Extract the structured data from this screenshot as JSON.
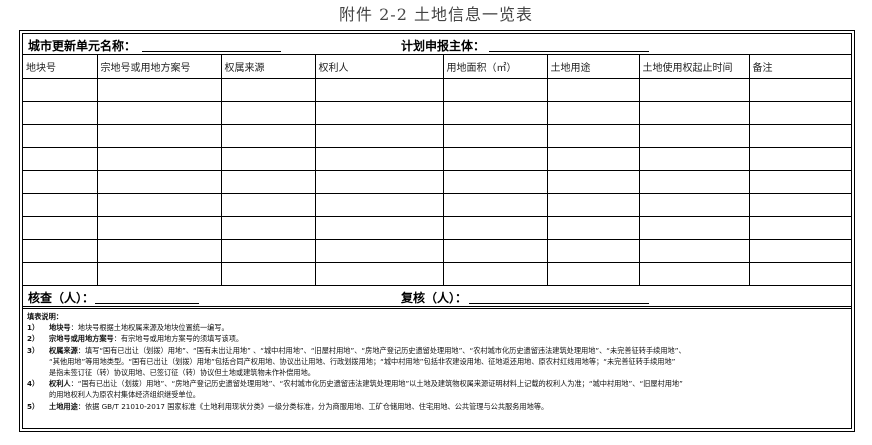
{
  "title": "附件 2-2 土地信息一览表",
  "header": {
    "unit_name_label": "城市更新单元名称：",
    "applicant_label": "计划申报主体："
  },
  "columns": [
    "地块号",
    "宗地号或用地方案号",
    "权属来源",
    "权利人",
    "用地面积（㎡）",
    "土地用途",
    "土地使用权起止时间",
    "备注"
  ],
  "row_count": 9,
  "footer": {
    "checker_label": "核查（人）：",
    "reviewer_label": "复核（人）："
  },
  "notes": {
    "heading": "填表说明：",
    "items": [
      {
        "num": "1）",
        "term": "地块号",
        "lines": [
          "：地块号根据土地权属来源及地块位置统一编写。"
        ]
      },
      {
        "num": "2）",
        "term": "宗地号或用地方案号",
        "lines": [
          "：有宗地号或用地方案号的须填写该项。"
        ]
      },
      {
        "num": "3）",
        "term": "权属来源",
        "lines": [
          "：填写“国有已出让（划拨）用地”、“国有未出让用地” 、“城中村用地”、“旧屋村用地”、“房地产登记历史遗留处理用地”、“农村城市化历史遗留违法建筑处理用地”、“未完善征转手续用地”、",
          "“其他用地”等用地类型。“国有已出让（划拨）用地”包括合同产权用地、协议出让用地、行政划拨用地；“城中村用地”包括非农建设用地、征地返还用地、原农村红线用地等；“未完善征转手续用地”",
          "是指未签订征（转）协议用地、已签订征（转）协议但土地或建筑物未作补偿用地。"
        ]
      },
      {
        "num": "4）",
        "term": "权利人",
        "lines": [
          "：“国有已出让（划拨）用地”、“房地产登记历史遗留处理用地”、“农村城市化历史遗留违法建筑处理用地”以土地及建筑物权属来源证明材料上记载的权利人为准；“城中村用地”、“旧屋村用地”",
          "的用地权利人为原农村集体经济组织继受单位。"
        ]
      },
      {
        "num": "5）",
        "term": "土地用途",
        "lines": [
          "：依据 GB/T 21010-2017 国家标准《土地利用现状分类》一级分类标准，分为商服用地、工矿仓储用地、住宅用地、公共管理与公共服务用地等。"
        ]
      }
    ]
  }
}
